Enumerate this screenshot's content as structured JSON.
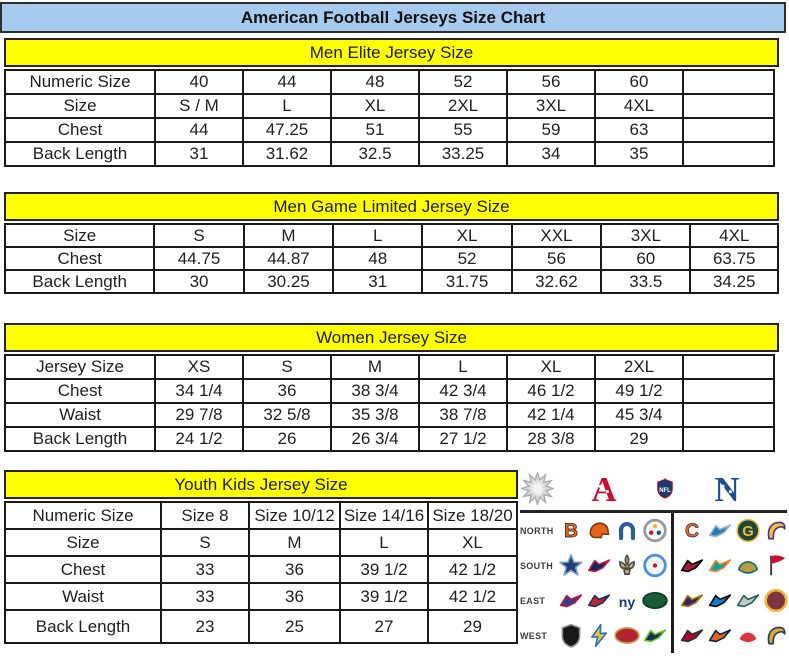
{
  "page": {
    "title": "American Football Jerseys Size Chart"
  },
  "colors": {
    "title_bg": "#a6cbee",
    "section_header_bg": "#ffff00",
    "border": "#1a1a1a",
    "afc_red": "#c8102e",
    "nfc_blue": "#1d4e8f"
  },
  "tables": [
    {
      "header": "Men Elite Jersey Size",
      "trailing_empty_col": true,
      "rows": [
        {
          "label": "Numeric Size",
          "values": [
            "40",
            "44",
            "48",
            "52",
            "56",
            "60"
          ]
        },
        {
          "label": "Size",
          "values": [
            "S / M",
            "L",
            "XL",
            "2XL",
            "3XL",
            "4XL"
          ]
        },
        {
          "label": "Chest",
          "values": [
            "44",
            "47.25",
            "51",
            "55",
            "59",
            "63"
          ]
        },
        {
          "label": "Back Length",
          "values": [
            "31",
            "31.62",
            "32.5",
            "33.25",
            "34",
            "35"
          ]
        }
      ]
    },
    {
      "header": "Men Game Limited Jersey Size",
      "trailing_empty_col": false,
      "rows": [
        {
          "label": "Size",
          "values": [
            "S",
            "M",
            "L",
            "XL",
            "XXL",
            "3XL",
            "4XL"
          ]
        },
        {
          "label": "Chest",
          "values": [
            "44.75",
            "44.87",
            "48",
            "52",
            "56",
            "60",
            "63.75"
          ]
        },
        {
          "label": "Back Length",
          "values": [
            "30",
            "30.25",
            "31",
            "31.75",
            "32.62",
            "33.5",
            "34.25"
          ]
        }
      ]
    },
    {
      "header": "Women Jersey Size",
      "trailing_empty_col": true,
      "rows": [
        {
          "label": "Jersey Size",
          "values": [
            "XS",
            "S",
            "M",
            "L",
            "XL",
            "2XL"
          ]
        },
        {
          "label": "Chest",
          "values": [
            "34 1/4",
            "36",
            "38 3/4",
            "42 3/4",
            "46 1/2",
            "49 1/2"
          ]
        },
        {
          "label": "Waist",
          "values": [
            "29 7/8",
            "32 5/8",
            "35 3/8",
            "38 7/8",
            "42 1/4",
            "45 3/4"
          ]
        },
        {
          "label": "Back Length",
          "values": [
            "24 1/2",
            "26",
            "26 3/4",
            "27 1/2",
            "28 3/8",
            "29"
          ]
        }
      ]
    },
    {
      "header": "Youth Kids Jersey Size",
      "trailing_empty_col": false,
      "rows": [
        {
          "label": "Numeric Size",
          "values": [
            "Size 8",
            "Size 10/12",
            "Size 14/16",
            "Size 18/20"
          ]
        },
        {
          "label": "Size",
          "values": [
            "S",
            "M",
            "L",
            "XL"
          ]
        },
        {
          "label": "Chest",
          "values": [
            "33",
            "36",
            "39 1/2",
            "42 1/2"
          ]
        },
        {
          "label": "Waist",
          "values": [
            "33",
            "36",
            "39 1/2",
            "42 1/2"
          ]
        },
        {
          "label": "Back Length",
          "values": [
            "23",
            "25",
            "27",
            "29"
          ]
        }
      ]
    }
  ],
  "logo_panel": {
    "header_icons": [
      {
        "name": "starburst-icon",
        "shape": "starburst",
        "fill": "#d9d9d9",
        "stroke": "#ababab"
      },
      {
        "name": "afc-logo",
        "shape": "confLetter",
        "text": "A",
        "fill": "#c8102e"
      },
      {
        "name": "nfl-shield-logo",
        "shape": "nflShield",
        "text": "NFL",
        "fill": "#1b3a6b",
        "stroke": "#c8102e"
      },
      {
        "name": "nfc-logo",
        "shape": "confLetter",
        "text": "N",
        "fill": "#1d4e8f"
      }
    ],
    "divisions": [
      "NORTH",
      "SOUTH",
      "EAST",
      "WEST"
    ],
    "rows": [
      {
        "division": "NORTH",
        "afc": [
          {
            "name": "bengals-logo",
            "shape": "letter",
            "text": "B",
            "fill": "#f26522",
            "stroke": "#111111"
          },
          {
            "name": "browns-logo",
            "shape": "helmet",
            "fill": "#e8641b",
            "stroke": "#7a3a12"
          },
          {
            "name": "colts-logo",
            "shape": "horseshoe",
            "fill": "none",
            "stroke": "#2a5b9e"
          },
          {
            "name": "steelers-logo",
            "shape": "circleDots",
            "fill": "#ffffff",
            "stroke": "#9a9a9a",
            "accents": [
              "#f0b93a",
              "#c8102e",
              "#00539b"
            ]
          }
        ],
        "nfc": [
          {
            "name": "bears-logo",
            "shape": "letter",
            "text": "C",
            "fill": "#f26522",
            "stroke": "#13264b"
          },
          {
            "name": "lions-logo",
            "shape": "bird",
            "fill": "#2a7ab8",
            "stroke": "#9fb3c8"
          },
          {
            "name": "packers-logo",
            "shape": "circleLetter",
            "text": "G",
            "fill": "#20473a",
            "accent": "#f0b93a"
          },
          {
            "name": "vikings-logo",
            "shape": "horn",
            "fill": "#ecc43f",
            "stroke": "#582c83"
          }
        ]
      },
      {
        "division": "SOUTH",
        "afc": [
          {
            "name": "cowboys-logo",
            "shape": "star",
            "fill": "#1f3f7a",
            "stroke": "#7d9cc5"
          },
          {
            "name": "texans-logo",
            "shape": "bird",
            "fill": "#0b2265",
            "stroke": "#c41e3a"
          },
          {
            "name": "saints-logo",
            "shape": "fleur",
            "fill": "#c5ad6e",
            "stroke": "#4a4a4a"
          },
          {
            "name": "titans-logo",
            "shape": "circleDots",
            "fill": "#f4f6f8",
            "stroke": "#4b92db",
            "accents": [
              "#c8102e"
            ]
          }
        ],
        "nfc": [
          {
            "name": "falcons-logo",
            "shape": "bird",
            "fill": "#a71930",
            "stroke": "#000000"
          },
          {
            "name": "dolphins-logo",
            "shape": "bird",
            "fill": "#11a3ab",
            "stroke": "#f58220"
          },
          {
            "name": "jaguars-logo",
            "shape": "arrowhead",
            "fill": "#c19a3d",
            "stroke": "#0d6e78"
          },
          {
            "name": "buccaneers-logo",
            "shape": "flag",
            "fill": "#c8102e",
            "stroke": "#3d3d3d"
          }
        ]
      },
      {
        "division": "EAST",
        "afc": [
          {
            "name": "bills-logo",
            "shape": "bird",
            "fill": "#24449c",
            "stroke": "#c8102e"
          },
          {
            "name": "patriots-logo",
            "shape": "bird",
            "fill": "#c3242e",
            "stroke": "#1c2f5e"
          },
          {
            "name": "giants-logo",
            "shape": "letter",
            "text": "ny",
            "fill": "#1b3a7a"
          },
          {
            "name": "jets-logo",
            "shape": "oval",
            "fill": "#1b5b37",
            "stroke": "#0e3d24"
          }
        ],
        "nfc": [
          {
            "name": "ravens-logo",
            "shape": "bird",
            "fill": "#3b1f6e",
            "stroke": "#9e7c0c"
          },
          {
            "name": "panthers-logo",
            "shape": "bird",
            "fill": "#0085ca",
            "stroke": "#000000"
          },
          {
            "name": "eagles-logo",
            "shape": "bird",
            "fill": "#c3cacd",
            "stroke": "#2a5e55"
          },
          {
            "name": "redskins-logo",
            "shape": "circle",
            "fill": "#7d3540",
            "stroke": "#f0b93a"
          }
        ]
      },
      {
        "division": "WEST",
        "afc": [
          {
            "name": "raiders-logo",
            "shape": "shield",
            "fill": "#171717",
            "stroke": "#8e9194"
          },
          {
            "name": "chargers-logo",
            "shape": "bolt",
            "fill": "#f2c23e",
            "stroke": "#2a72b8"
          },
          {
            "name": "fortyniners-logo",
            "shape": "oval",
            "fill": "#b3252e",
            "stroke": "#c9a45c"
          },
          {
            "name": "seahawks-logo",
            "shape": "bird",
            "fill": "#16324f",
            "stroke": "#69be28"
          }
        ],
        "nfc": [
          {
            "name": "cardinals-logo",
            "shape": "bird",
            "fill": "#b0063a",
            "stroke": "#2b2b2b"
          },
          {
            "name": "broncos-logo",
            "shape": "bird",
            "fill": "#e8641b",
            "stroke": "#0a2343"
          },
          {
            "name": "chiefs-logo",
            "shape": "arrowhead",
            "fill": "#d6373f",
            "stroke": "#f2f2f2"
          },
          {
            "name": "rams-logo",
            "shape": "horn",
            "fill": "#e0a526",
            "stroke": "#1c3d6e"
          }
        ]
      }
    ]
  }
}
